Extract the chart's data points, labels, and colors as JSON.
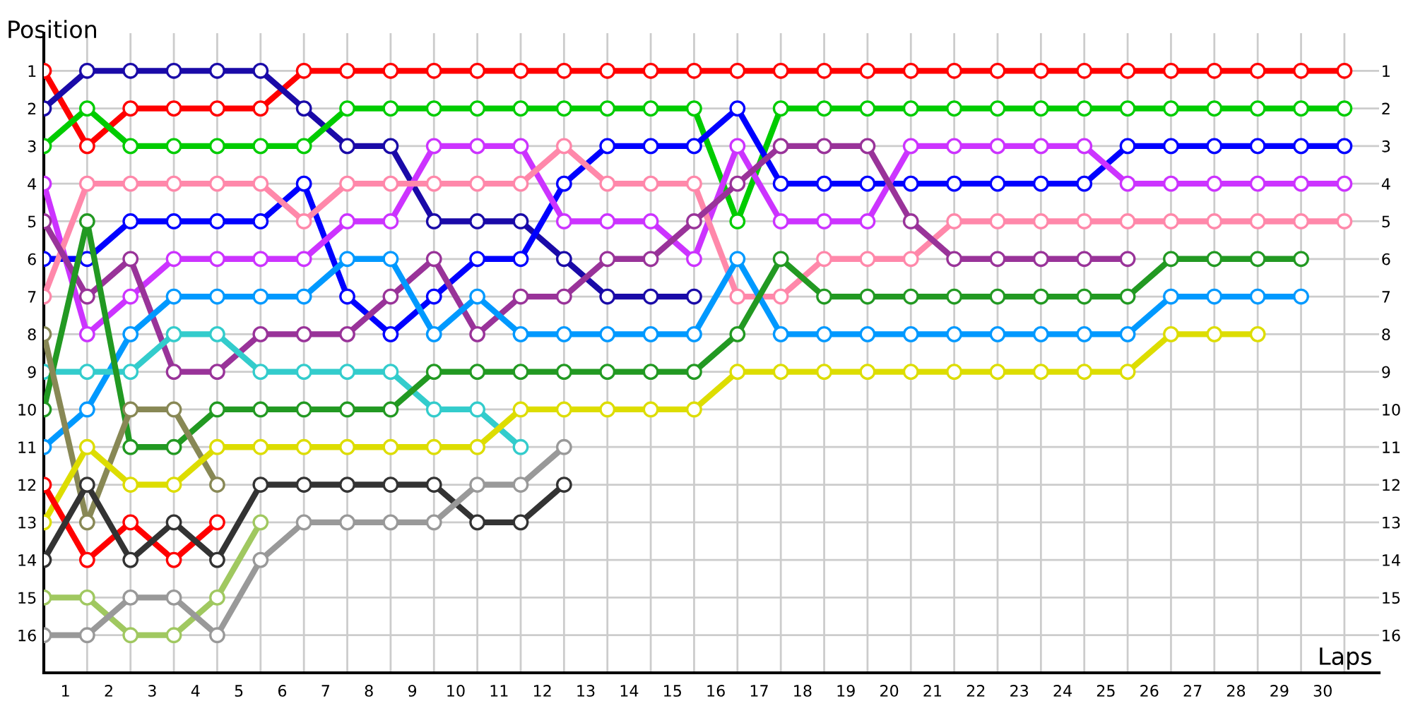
{
  "chart_data": {
    "type": "line",
    "xlabel": "Laps",
    "ylabel": "Position",
    "x": [
      0,
      1,
      2,
      3,
      4,
      5,
      6,
      7,
      8,
      9,
      10,
      11,
      12,
      13,
      14,
      15,
      16,
      17,
      18,
      19,
      20,
      21,
      22,
      23,
      24,
      25,
      26,
      27,
      28,
      29,
      30
    ],
    "xlim": [
      0,
      30.8
    ],
    "xticks": [
      {
        "value": 0,
        "label": null
      },
      {
        "value": 0.5,
        "label": "1"
      },
      {
        "value": 1,
        "label": null
      },
      {
        "value": 1.5,
        "label": "2"
      },
      {
        "value": 2,
        "label": null
      },
      {
        "value": 2.5,
        "label": "3"
      },
      {
        "value": 3,
        "label": null
      },
      {
        "value": 3.5,
        "label": "4"
      },
      {
        "value": 4,
        "label": null
      },
      {
        "value": 4.5,
        "label": "5"
      },
      {
        "value": 5,
        "label": null
      },
      {
        "value": 5.5,
        "label": "6"
      },
      {
        "value": 6,
        "label": null
      },
      {
        "value": 6.5,
        "label": "7"
      },
      {
        "value": 7,
        "label": null
      },
      {
        "value": 7.5,
        "label": "8"
      },
      {
        "value": 8,
        "label": null
      },
      {
        "value": 8.5,
        "label": "9"
      },
      {
        "value": 9,
        "label": null
      },
      {
        "value": 9.5,
        "label": "10"
      },
      {
        "value": 10,
        "label": null
      },
      {
        "value": 10.5,
        "label": "11"
      },
      {
        "value": 11,
        "label": null
      },
      {
        "value": 11.5,
        "label": "12"
      },
      {
        "value": 12,
        "label": null
      },
      {
        "value": 12.5,
        "label": "13"
      },
      {
        "value": 13,
        "label": null
      },
      {
        "value": 13.5,
        "label": "14"
      },
      {
        "value": 14,
        "label": null
      },
      {
        "value": 14.5,
        "label": "15"
      },
      {
        "value": 15,
        "label": null
      },
      {
        "value": 15.5,
        "label": "16"
      },
      {
        "value": 16,
        "label": null
      },
      {
        "value": 16.5,
        "label": "17"
      },
      {
        "value": 17,
        "label": null
      },
      {
        "value": 17.5,
        "label": "18"
      },
      {
        "value": 18,
        "label": null
      },
      {
        "value": 18.5,
        "label": "19"
      },
      {
        "value": 19,
        "label": null
      },
      {
        "value": 19.5,
        "label": "20"
      },
      {
        "value": 20,
        "label": null
      },
      {
        "value": 20.5,
        "label": "21"
      },
      {
        "value": 21,
        "label": null
      },
      {
        "value": 21.5,
        "label": "22"
      },
      {
        "value": 22,
        "label": null
      },
      {
        "value": 22.5,
        "label": "23"
      },
      {
        "value": 23,
        "label": null
      },
      {
        "value": 23.5,
        "label": "24"
      },
      {
        "value": 24,
        "label": null
      },
      {
        "value": 24.5,
        "label": "25"
      },
      {
        "value": 25,
        "label": null
      },
      {
        "value": 25.5,
        "label": "26"
      },
      {
        "value": 26,
        "label": null
      },
      {
        "value": 26.5,
        "label": "27"
      },
      {
        "value": 27,
        "label": null
      },
      {
        "value": 27.5,
        "label": "28"
      },
      {
        "value": 28,
        "label": null
      },
      {
        "value": 28.5,
        "label": "29"
      },
      {
        "value": 29,
        "label": null
      },
      {
        "value": 29.5,
        "label": "30"
      },
      {
        "value": 30,
        "label": null
      }
    ],
    "ylim": [
      17,
      0
    ],
    "yticks": [
      1,
      2,
      3,
      4,
      5,
      6,
      7,
      8,
      9,
      10,
      11,
      12,
      13,
      14,
      15,
      16
    ],
    "y2lim": [
      17,
      0
    ],
    "y2ticks": [
      1,
      2,
      3,
      4,
      5,
      6,
      7,
      8,
      9,
      10,
      11,
      12,
      13,
      14,
      15,
      16
    ],
    "grid": true,
    "marker": "circle",
    "line_style": "solid",
    "series": [
      {
        "color": "#ff0000",
        "values": [
          1,
          3,
          2,
          2,
          2,
          2,
          1,
          1,
          1,
          1,
          1,
          1,
          1,
          1,
          1,
          1,
          1,
          1,
          1,
          1,
          1,
          1,
          1,
          1,
          1,
          1,
          1,
          1,
          1,
          1,
          1
        ]
      },
      {
        "color": "#1a0aa8",
        "values": [
          2,
          1,
          1,
          1,
          1,
          1,
          2,
          3,
          3,
          5,
          5,
          5,
          6,
          7,
          7,
          7,
          null,
          null,
          null,
          null,
          null,
          null,
          null,
          null,
          null,
          null,
          null,
          null,
          null,
          null,
          null
        ]
      },
      {
        "color": "#00cc00",
        "values": [
          3,
          2,
          3,
          3,
          3,
          3,
          3,
          2,
          2,
          2,
          2,
          2,
          2,
          2,
          2,
          2,
          5,
          2,
          2,
          2,
          2,
          2,
          2,
          2,
          2,
          2,
          2,
          2,
          2,
          2,
          2
        ]
      },
      {
        "color": "#0000ff",
        "values": [
          6,
          6,
          5,
          5,
          5,
          5,
          4,
          7,
          8,
          7,
          6,
          6,
          4,
          3,
          3,
          3,
          2,
          4,
          4,
          4,
          4,
          4,
          4,
          4,
          4,
          3,
          3,
          3,
          3,
          3,
          3
        ]
      },
      {
        "color": "#cc33ff",
        "values": [
          4,
          8,
          7,
          6,
          6,
          6,
          6,
          5,
          5,
          3,
          3,
          3,
          5,
          5,
          5,
          6,
          3,
          5,
          5,
          5,
          3,
          3,
          3,
          3,
          3,
          4,
          4,
          4,
          4,
          4,
          4
        ]
      },
      {
        "color": "#ff88aa",
        "values": [
          7,
          4,
          4,
          4,
          4,
          4,
          5,
          4,
          4,
          4,
          4,
          4,
          3,
          4,
          4,
          4,
          7,
          7,
          6,
          6,
          6,
          5,
          5,
          5,
          5,
          5,
          5,
          5,
          5,
          5,
          5
        ]
      },
      {
        "color": "#993399",
        "values": [
          5,
          7,
          6,
          9,
          9,
          8,
          8,
          8,
          7,
          6,
          8,
          7,
          7,
          6,
          6,
          5,
          4,
          3,
          3,
          3,
          5,
          6,
          6,
          6,
          6,
          6,
          null,
          null,
          null,
          null,
          null
        ]
      },
      {
        "color": "#0099ff",
        "values": [
          11,
          10,
          8,
          7,
          7,
          7,
          7,
          6,
          6,
          8,
          7,
          8,
          8,
          8,
          8,
          8,
          6,
          8,
          8,
          8,
          8,
          8,
          8,
          8,
          8,
          8,
          7,
          7,
          7,
          7,
          null
        ]
      },
      {
        "color": "#33cccc",
        "values": [
          9,
          9,
          9,
          8,
          8,
          9,
          9,
          9,
          9,
          10,
          10,
          11,
          null,
          null,
          null,
          null,
          null,
          null,
          null,
          null,
          null,
          null,
          null,
          null,
          null,
          null,
          null,
          null,
          null,
          null,
          null
        ]
      },
      {
        "color": "#229922",
        "values": [
          10,
          5,
          11,
          11,
          10,
          10,
          10,
          10,
          10,
          9,
          9,
          9,
          9,
          9,
          9,
          9,
          8,
          6,
          7,
          7,
          7,
          7,
          7,
          7,
          7,
          7,
          6,
          6,
          6,
          6,
          null
        ]
      },
      {
        "color": "#888855",
        "values": [
          8,
          13,
          10,
          10,
          12,
          null,
          null,
          null,
          null,
          null,
          null,
          null,
          null,
          null,
          null,
          null,
          null,
          null,
          null,
          null,
          null,
          null,
          null,
          null,
          null,
          null,
          null,
          null,
          null,
          null,
          null
        ]
      },
      {
        "color": "#dddd00",
        "values": [
          13,
          11,
          12,
          12,
          11,
          11,
          11,
          11,
          11,
          11,
          11,
          10,
          10,
          10,
          10,
          10,
          9,
          9,
          9,
          9,
          9,
          9,
          9,
          9,
          9,
          9,
          8,
          8,
          8,
          null,
          null
        ]
      },
      {
        "color": "#ff0000",
        "values": [
          12,
          14,
          13,
          14,
          13,
          null,
          null,
          null,
          null,
          null,
          null,
          null,
          null,
          null,
          null,
          null,
          null,
          null,
          null,
          null,
          null,
          null,
          null,
          null,
          null,
          null,
          null,
          null,
          null,
          null,
          null
        ]
      },
      {
        "color": "#333333",
        "values": [
          14,
          12,
          14,
          13,
          14,
          12,
          12,
          12,
          12,
          12,
          13,
          13,
          12,
          null,
          null,
          null,
          null,
          null,
          null,
          null,
          null,
          null,
          null,
          null,
          null,
          null,
          null,
          null,
          null,
          null,
          null
        ]
      },
      {
        "color": "#a0c860",
        "values": [
          15,
          15,
          16,
          16,
          15,
          13,
          null,
          null,
          null,
          null,
          null,
          null,
          null,
          null,
          null,
          null,
          null,
          null,
          null,
          null,
          null,
          null,
          null,
          null,
          null,
          null,
          null,
          null,
          null,
          null,
          null
        ]
      },
      {
        "color": "#999999",
        "values": [
          16,
          16,
          15,
          15,
          16,
          14,
          13,
          13,
          13,
          13,
          12,
          12,
          11,
          null,
          null,
          null,
          null,
          null,
          null,
          null,
          null,
          null,
          null,
          null,
          null,
          null,
          null,
          null,
          null,
          null,
          null
        ]
      }
    ]
  }
}
